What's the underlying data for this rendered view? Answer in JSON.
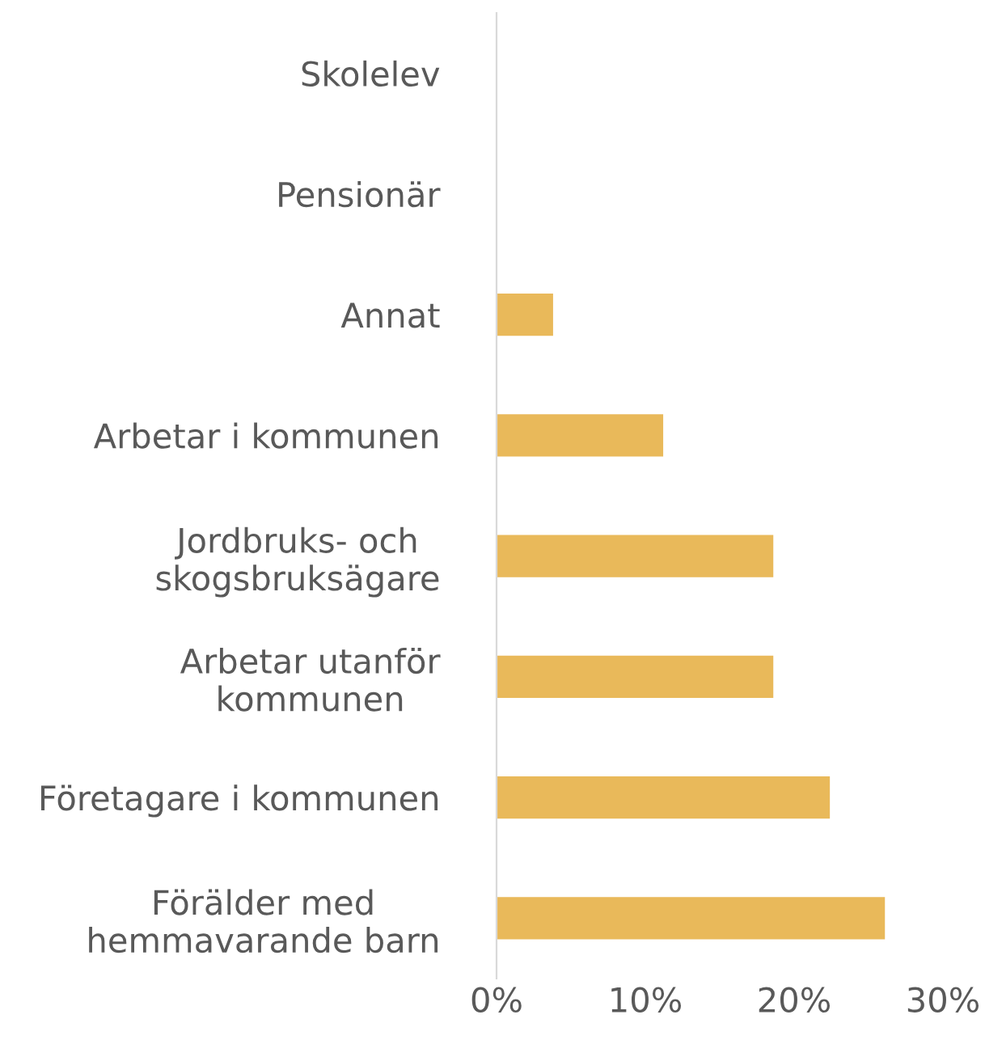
{
  "chart_data": {
    "type": "bar",
    "orientation": "horizontal",
    "categories": [
      "Skolelev",
      "Pensionär",
      "Annat",
      "Arbetar i kommunen",
      "Jordbruks- och\nskogsbruksägare",
      "Arbetar utanför\nkommunen",
      "Företagare i kommunen",
      "Förälder med\nhemmavarande barn"
    ],
    "values": [
      0,
      0,
      3.8,
      11.2,
      18.6,
      18.6,
      22.4,
      26.1
    ],
    "color": "#e9b95a",
    "xlim": [
      0,
      30
    ],
    "xticks": [
      {
        "value": 0,
        "label": "0%"
      },
      {
        "value": 10,
        "label": "10%"
      },
      {
        "value": 20,
        "label": "20%"
      },
      {
        "value": 30,
        "label": "30%"
      }
    ],
    "grid": false,
    "legend": false
  }
}
